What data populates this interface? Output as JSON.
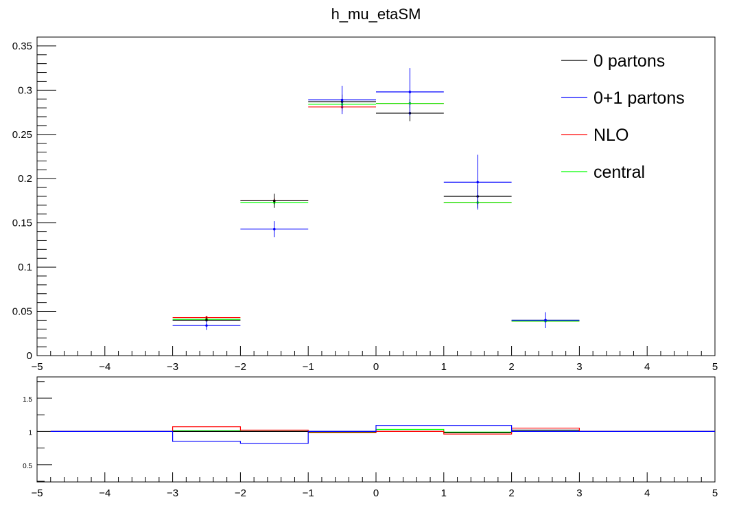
{
  "chart_data": [
    {
      "type": "histogram",
      "title": "h_mu_etaSM",
      "xlabel": "",
      "ylabel": "",
      "xlim": [
        -5,
        5
      ],
      "ylim": [
        0,
        0.36
      ],
      "xticks": [
        "−5",
        "−4",
        "−3",
        "−2",
        "−1",
        "0",
        "1",
        "2",
        "3",
        "4",
        "5"
      ],
      "yticks": [
        {
          "v": 0,
          "label": "0"
        },
        {
          "v": 0.05,
          "label": "0.05"
        },
        {
          "v": 0.1,
          "label": "0.1"
        },
        {
          "v": 0.15,
          "label": "0.15"
        },
        {
          "v": 0.2,
          "label": "0.2"
        },
        {
          "v": 0.25,
          "label": "0.25"
        },
        {
          "v": 0.3,
          "label": "0.3"
        },
        {
          "v": 0.35,
          "label": "0.35"
        }
      ],
      "legend_position": "top-right",
      "bins": [
        [
          -3,
          -2
        ],
        [
          -2,
          -1
        ],
        [
          -1,
          0
        ],
        [
          0,
          1
        ],
        [
          1,
          2
        ],
        [
          2,
          3
        ]
      ],
      "series": [
        {
          "name": "0 partons",
          "color": "#000000",
          "values": [
            0.04,
            0.175,
            0.287,
            0.274,
            0.18,
            0.04
          ],
          "errors": [
            0.004,
            0.008,
            0.008,
            0.009,
            0.013,
            0.004
          ]
        },
        {
          "name": "0+1 partons",
          "color": "#0000ff",
          "values": [
            0.034,
            0.143,
            0.289,
            0.298,
            0.196,
            0.04
          ],
          "errors": [
            0.005,
            0.009,
            0.016,
            0.027,
            0.031,
            0.009
          ]
        },
        {
          "name": "NLO",
          "color": "#ff0000",
          "values": [
            0.043,
            0.175,
            0.281,
            0.285,
            0.173,
            0.039
          ],
          "errors": [
            0.002,
            0.003,
            0.005,
            0.005,
            0.003,
            0.002
          ]
        },
        {
          "name": "central",
          "color": "#00ff00",
          "values": [
            0.041,
            0.173,
            0.284,
            0.285,
            0.173,
            0.039
          ],
          "errors": [
            0.002,
            0.003,
            0.005,
            0.005,
            0.003,
            0.002
          ]
        }
      ]
    },
    {
      "type": "line",
      "title": "",
      "xlim": [
        -5,
        5
      ],
      "ylim": [
        0.24,
        1.82
      ],
      "xticks": [
        "−5",
        "−4",
        "−3",
        "−2",
        "−1",
        "0",
        "1",
        "2",
        "3",
        "4",
        "5"
      ],
      "yticks": [
        {
          "v": 0.5,
          "label": "0.5"
        },
        {
          "v": 1,
          "label": "1"
        },
        {
          "v": 1.5,
          "label": "1.5"
        }
      ],
      "bin_edges": [
        -4.8,
        -3,
        -2,
        -1,
        0,
        1,
        2,
        3,
        5
      ],
      "series": [
        {
          "name": "central",
          "color": "#00ff00",
          "values": [
            1.0,
            1.01,
            1.0,
            0.99,
            1.03,
            0.99,
            1.0,
            1.0
          ]
        },
        {
          "name": "0 partons",
          "color": "#000000",
          "values": [
            1.0,
            1.0,
            1.0,
            1.0,
            1.0,
            0.98,
            1.02,
            1.0
          ]
        },
        {
          "name": "NLO",
          "color": "#ff0000",
          "values": [
            1.0,
            1.07,
            1.02,
            0.98,
            1.0,
            0.96,
            1.05,
            1.0
          ]
        },
        {
          "name": "0+1 partons",
          "color": "#0000ff",
          "values": [
            1.0,
            0.85,
            0.82,
            1.0,
            1.09,
            1.09,
            1.0,
            1.0
          ]
        }
      ]
    }
  ]
}
